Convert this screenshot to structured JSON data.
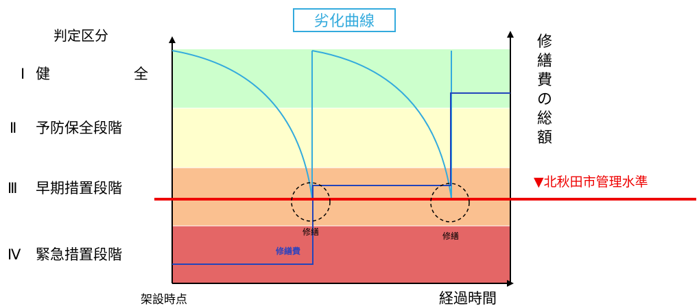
{
  "title": "劣化曲線",
  "y_axis_label": "判定区分",
  "right_axis_label": [
    "修",
    "繕",
    "費",
    "の",
    "総",
    "額"
  ],
  "x_axis_start_label": "架設時点",
  "x_axis_end_label": "経過時間",
  "categories": [
    {
      "numeral": "Ⅰ",
      "label_left": "健",
      "label_right": "全",
      "color": "#ccffcc"
    },
    {
      "numeral": "Ⅱ",
      "label": "予防保全段階",
      "color": "#ffffcc"
    },
    {
      "numeral": "Ⅲ",
      "label": "早期措置段階",
      "color": "#fac090"
    },
    {
      "numeral": "Ⅳ",
      "label": "緊急措置段階",
      "color": "#e46666"
    }
  ],
  "management_level_label": "▼北秋田市管理水準",
  "repair_labels": [
    "修繕",
    "修繕"
  ],
  "repair_cost_label": "修繕費",
  "colors": {
    "title_border": "#33aadd",
    "title_text": "#33aadd",
    "deterioration_curve": "#33aadd",
    "repair_cost_line": "#2244bb",
    "management_line": "#ee0000",
    "management_text": "#ee0000",
    "repair_cost_text": "#3344bb",
    "axis": "#000000"
  }
}
